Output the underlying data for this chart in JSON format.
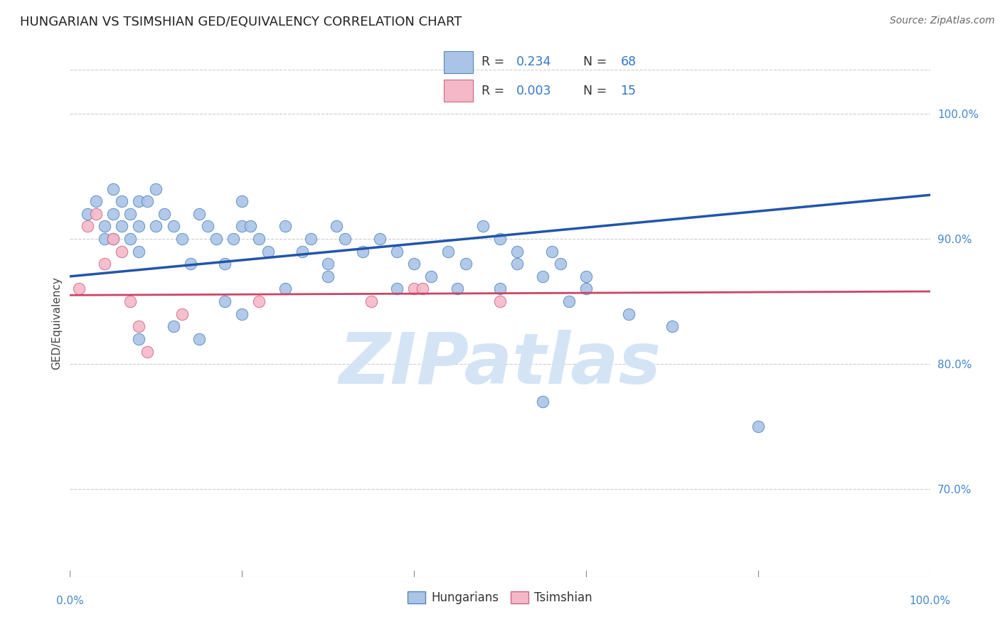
{
  "title": "HUNGARIAN VS TSIMSHIAN GED/EQUIVALENCY CORRELATION CHART",
  "source": "Source: ZipAtlas.com",
  "ylabel": "GED/Equivalency",
  "ylabel_right_ticks": [
    70.0,
    80.0,
    90.0,
    100.0
  ],
  "xlim": [
    0.0,
    100.0
  ],
  "ylim": [
    63.0,
    103.5
  ],
  "legend_entry1": "R = 0.234   N = 68",
  "legend_entry2": "R = 0.003   N = 15",
  "legend_label1": "Hungarians",
  "legend_label2": "Tsimshian",
  "blue_scatter_x": [
    2,
    3,
    4,
    4,
    5,
    5,
    5,
    6,
    6,
    7,
    7,
    8,
    8,
    8,
    9,
    10,
    10,
    11,
    12,
    13,
    14,
    15,
    16,
    17,
    18,
    19,
    20,
    20,
    21,
    22,
    23,
    25,
    27,
    28,
    30,
    31,
    32,
    34,
    36,
    38,
    40,
    42,
    44,
    46,
    48,
    50,
    52,
    52,
    55,
    56,
    57,
    58,
    60,
    38,
    50,
    60,
    65,
    70,
    30,
    25,
    18,
    12,
    8,
    20,
    15,
    45,
    55,
    80
  ],
  "blue_scatter_y": [
    92,
    93,
    91,
    90,
    94,
    92,
    90,
    93,
    91,
    92,
    90,
    93,
    91,
    89,
    93,
    94,
    91,
    92,
    91,
    90,
    88,
    92,
    91,
    90,
    88,
    90,
    93,
    91,
    91,
    90,
    89,
    91,
    89,
    90,
    88,
    91,
    90,
    89,
    90,
    89,
    88,
    87,
    89,
    88,
    91,
    90,
    89,
    88,
    87,
    89,
    88,
    85,
    87,
    86,
    86,
    86,
    84,
    83,
    87,
    86,
    85,
    83,
    82,
    84,
    82,
    86,
    77,
    75
  ],
  "pink_scatter_x": [
    1,
    2,
    3,
    4,
    5,
    6,
    7,
    8,
    9,
    13,
    22,
    35,
    40,
    41,
    50
  ],
  "pink_scatter_y": [
    86,
    91,
    92,
    88,
    90,
    89,
    85,
    83,
    81,
    84,
    85,
    85,
    86,
    86,
    85
  ],
  "blue_line_x": [
    0,
    100
  ],
  "blue_line_y": [
    87.0,
    93.5
  ],
  "pink_line_x": [
    0,
    100
  ],
  "pink_line_y": [
    85.5,
    85.8
  ],
  "grid_color": "#cccccc",
  "blue_color": "#aac4e8",
  "blue_edge_color": "#5588bb",
  "blue_line_color": "#2255aa",
  "pink_color": "#f5b8c8",
  "pink_edge_color": "#cc6688",
  "pink_line_color": "#cc4466",
  "watermark_text": "ZIPatlas",
  "watermark_color": "#d4e4f5",
  "background_color": "#ffffff",
  "title_fontsize": 13,
  "axis_label_fontsize": 11,
  "tick_fontsize": 11,
  "source_fontsize": 10
}
